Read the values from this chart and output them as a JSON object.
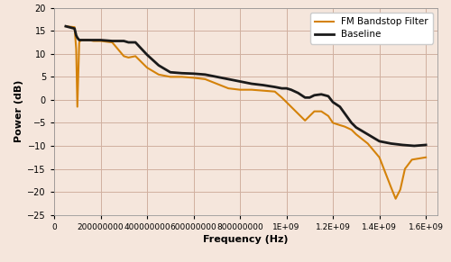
{
  "title": "",
  "xlabel": "Frequency (Hz)",
  "ylabel": "Power (dB)",
  "xlim": [
    0,
    1650000000.0
  ],
  "ylim": [
    -25,
    20
  ],
  "yticks": [
    -25,
    -20,
    -15,
    -10,
    -5,
    0,
    5,
    10,
    15,
    20
  ],
  "xticks": [
    0,
    200000000,
    400000000,
    600000000,
    800000000,
    1000000000,
    1200000000,
    1400000000,
    1600000000
  ],
  "xtick_labels": [
    "0",
    "200000000",
    "400000000",
    "600000000",
    "800000000",
    "1E+09",
    "1.2E+09",
    "1.4E+09",
    "1.6E+09"
  ],
  "background_color": "#f5e6dc",
  "grid_color": "#d0b0a0",
  "fm_color": "#d4820a",
  "baseline_color": "#1a1a1a",
  "legend_labels": [
    "FM Bandstop Filter",
    "Baseline"
  ],
  "fm_x": [
    50000000,
    88000000,
    95000000,
    100000000,
    108000000,
    115000000,
    130000000,
    150000000,
    170000000,
    200000000,
    250000000,
    300000000,
    320000000,
    350000000,
    400000000,
    450000000,
    500000000,
    550000000,
    600000000,
    650000000,
    700000000,
    750000000,
    800000000,
    850000000,
    900000000,
    950000000,
    980000000,
    1000000000,
    1020000000,
    1050000000,
    1080000000,
    1100000000,
    1120000000,
    1150000000,
    1180000000,
    1200000000,
    1230000000,
    1250000000,
    1280000000,
    1300000000,
    1350000000,
    1400000000,
    1450000000,
    1470000000,
    1490000000,
    1510000000,
    1540000000,
    1600000000
  ],
  "fm_y": [
    16.0,
    15.8,
    11.0,
    -1.5,
    12.5,
    13.0,
    13.0,
    13.0,
    12.8,
    12.8,
    12.5,
    9.5,
    9.2,
    9.5,
    7.0,
    5.5,
    5.0,
    5.0,
    4.8,
    4.5,
    3.5,
    2.5,
    2.2,
    2.2,
    2.0,
    1.8,
    0.5,
    -0.5,
    -1.5,
    -3.0,
    -4.5,
    -3.5,
    -2.5,
    -2.5,
    -3.5,
    -5.0,
    -5.5,
    -5.8,
    -6.5,
    -7.5,
    -9.5,
    -12.5,
    -19.0,
    -21.5,
    -19.5,
    -15.0,
    -13.0,
    -12.5
  ],
  "baseline_x": [
    50000000,
    88000000,
    95000000,
    100000000,
    108000000,
    120000000,
    150000000,
    200000000,
    250000000,
    300000000,
    320000000,
    350000000,
    400000000,
    450000000,
    500000000,
    550000000,
    600000000,
    650000000,
    700000000,
    750000000,
    800000000,
    850000000,
    900000000,
    950000000,
    980000000,
    1000000000,
    1020000000,
    1050000000,
    1080000000,
    1100000000,
    1120000000,
    1150000000,
    1180000000,
    1200000000,
    1230000000,
    1280000000,
    1300000000,
    1350000000,
    1400000000,
    1450000000,
    1500000000,
    1550000000,
    1600000000
  ],
  "baseline_y": [
    16.0,
    15.5,
    14.0,
    13.5,
    13.0,
    13.0,
    13.0,
    13.0,
    12.8,
    12.8,
    12.5,
    12.5,
    9.8,
    7.5,
    6.0,
    5.8,
    5.7,
    5.5,
    5.0,
    4.5,
    4.0,
    3.5,
    3.2,
    2.8,
    2.5,
    2.5,
    2.2,
    1.5,
    0.5,
    0.5,
    1.0,
    1.2,
    0.8,
    -0.5,
    -1.5,
    -5.0,
    -6.0,
    -7.5,
    -9.0,
    -9.5,
    -9.8,
    -10.0,
    -9.8
  ]
}
